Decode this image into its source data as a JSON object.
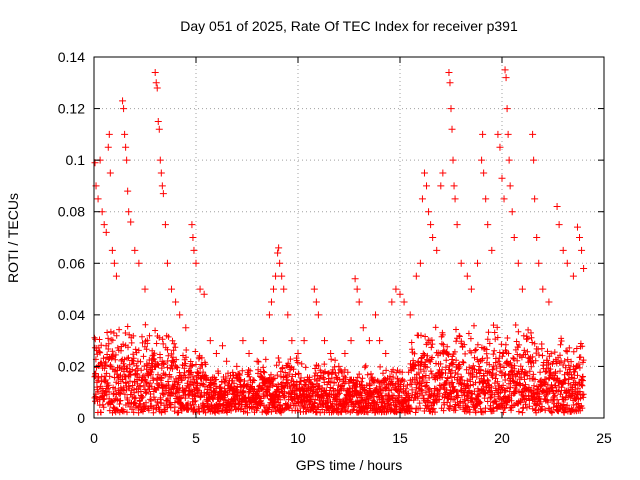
{
  "chart_data": {
    "type": "scatter",
    "title": "Day 051 of 2025, Rate Of TEC Index for receiver p391",
    "xlabel": "GPS time / hours",
    "ylabel": "ROTI / TECUs",
    "xlim": [
      0,
      25
    ],
    "ylim": [
      0,
      0.14
    ],
    "x_ticks": [
      0,
      5,
      10,
      15,
      20,
      25
    ],
    "y_ticks": [
      0,
      0.02,
      0.04,
      0.06,
      0.08,
      0.1,
      0.12,
      0.14
    ],
    "x_tick_labels": [
      "0",
      "5",
      "10",
      "15",
      "20",
      "25"
    ],
    "y_tick_labels": [
      "0",
      "0.02",
      "0.04",
      "0.06",
      "0.08",
      "0.1",
      "0.12",
      "0.14"
    ],
    "grid": true,
    "marker": "plus",
    "series_color": "#ff0000",
    "series": [
      {
        "values_note": "",
        "points": [
          [
            0.05,
            0.099
          ],
          [
            0.1,
            0.09
          ],
          [
            0.2,
            0.085
          ],
          [
            0.3,
            0.1
          ],
          [
            0.4,
            0.08
          ],
          [
            0.5,
            0.075
          ],
          [
            0.6,
            0.072
          ],
          [
            0.7,
            0.105
          ],
          [
            0.75,
            0.11
          ],
          [
            0.8,
            0.095
          ],
          [
            0.9,
            0.065
          ],
          [
            1.0,
            0.06
          ],
          [
            1.1,
            0.055
          ],
          [
            1.4,
            0.123
          ],
          [
            1.45,
            0.12
          ],
          [
            1.5,
            0.11
          ],
          [
            1.55,
            0.105
          ],
          [
            1.6,
            0.1
          ],
          [
            1.65,
            0.088
          ],
          [
            1.7,
            0.08
          ],
          [
            1.8,
            0.076
          ],
          [
            2.0,
            0.065
          ],
          [
            2.2,
            0.06
          ],
          [
            2.5,
            0.05
          ],
          [
            3.0,
            0.134
          ],
          [
            3.05,
            0.13
          ],
          [
            3.1,
            0.128
          ],
          [
            3.15,
            0.115
          ],
          [
            3.2,
            0.112
          ],
          [
            3.25,
            0.1
          ],
          [
            3.3,
            0.095
          ],
          [
            3.35,
            0.09
          ],
          [
            3.4,
            0.087
          ],
          [
            3.5,
            0.075
          ],
          [
            3.6,
            0.06
          ],
          [
            3.8,
            0.05
          ],
          [
            4.0,
            0.045
          ],
          [
            4.2,
            0.04
          ],
          [
            4.5,
            0.035
          ],
          [
            4.8,
            0.075
          ],
          [
            4.85,
            0.07
          ],
          [
            4.9,
            0.065
          ],
          [
            5.0,
            0.06
          ],
          [
            5.2,
            0.05
          ],
          [
            5.4,
            0.048
          ],
          [
            5.7,
            0.03
          ],
          [
            6.0,
            0.025
          ],
          [
            6.3,
            0.028
          ],
          [
            6.5,
            0.022
          ],
          [
            7.0,
            0.02
          ],
          [
            7.3,
            0.03
          ],
          [
            7.6,
            0.025
          ],
          [
            8.0,
            0.022
          ],
          [
            8.3,
            0.03
          ],
          [
            8.6,
            0.04
          ],
          [
            8.7,
            0.045
          ],
          [
            8.8,
            0.05
          ],
          [
            8.9,
            0.055
          ],
          [
            9.0,
            0.064
          ],
          [
            9.05,
            0.066
          ],
          [
            9.1,
            0.06
          ],
          [
            9.2,
            0.055
          ],
          [
            9.3,
            0.05
          ],
          [
            9.5,
            0.04
          ],
          [
            9.7,
            0.03
          ],
          [
            10.0,
            0.025
          ],
          [
            10.3,
            0.03
          ],
          [
            10.8,
            0.05
          ],
          [
            10.9,
            0.045
          ],
          [
            11.0,
            0.04
          ],
          [
            11.3,
            0.03
          ],
          [
            11.6,
            0.025
          ],
          [
            12.0,
            0.02
          ],
          [
            12.3,
            0.025
          ],
          [
            12.6,
            0.03
          ],
          [
            12.8,
            0.054
          ],
          [
            12.9,
            0.05
          ],
          [
            13.0,
            0.045
          ],
          [
            13.2,
            0.035
          ],
          [
            13.5,
            0.03
          ],
          [
            13.8,
            0.04
          ],
          [
            14.0,
            0.03
          ],
          [
            14.3,
            0.025
          ],
          [
            14.6,
            0.045
          ],
          [
            14.8,
            0.05
          ],
          [
            15.0,
            0.048
          ],
          [
            15.2,
            0.045
          ],
          [
            15.5,
            0.04
          ],
          [
            15.8,
            0.055
          ],
          [
            16.0,
            0.06
          ],
          [
            16.1,
            0.085
          ],
          [
            16.2,
            0.095
          ],
          [
            16.3,
            0.09
          ],
          [
            16.4,
            0.08
          ],
          [
            16.5,
            0.075
          ],
          [
            16.6,
            0.07
          ],
          [
            16.8,
            0.065
          ],
          [
            17.0,
            0.09
          ],
          [
            17.1,
            0.095
          ],
          [
            17.4,
            0.134
          ],
          [
            17.45,
            0.13
          ],
          [
            17.5,
            0.12
          ],
          [
            17.55,
            0.112
          ],
          [
            17.6,
            0.1
          ],
          [
            17.65,
            0.09
          ],
          [
            17.7,
            0.085
          ],
          [
            17.8,
            0.075
          ],
          [
            18.0,
            0.06
          ],
          [
            18.3,
            0.055
          ],
          [
            18.5,
            0.05
          ],
          [
            18.8,
            0.06
          ],
          [
            19.0,
            0.1
          ],
          [
            19.05,
            0.11
          ],
          [
            19.1,
            0.095
          ],
          [
            19.2,
            0.085
          ],
          [
            19.3,
            0.075
          ],
          [
            19.5,
            0.065
          ],
          [
            19.8,
            0.11
          ],
          [
            19.9,
            0.105
          ],
          [
            20.0,
            0.093
          ],
          [
            20.1,
            0.085
          ],
          [
            20.15,
            0.135
          ],
          [
            20.2,
            0.132
          ],
          [
            20.25,
            0.12
          ],
          [
            20.3,
            0.11
          ],
          [
            20.35,
            0.1
          ],
          [
            20.4,
            0.09
          ],
          [
            20.5,
            0.08
          ],
          [
            20.6,
            0.07
          ],
          [
            20.8,
            0.06
          ],
          [
            21.0,
            0.05
          ],
          [
            21.5,
            0.11
          ],
          [
            21.55,
            0.1
          ],
          [
            21.6,
            0.085
          ],
          [
            21.7,
            0.07
          ],
          [
            21.8,
            0.06
          ],
          [
            22.0,
            0.05
          ],
          [
            22.3,
            0.045
          ],
          [
            22.7,
            0.082
          ],
          [
            22.8,
            0.075
          ],
          [
            23.0,
            0.065
          ],
          [
            23.2,
            0.06
          ],
          [
            23.5,
            0.055
          ],
          [
            23.7,
            0.074
          ],
          [
            23.8,
            0.07
          ],
          [
            23.9,
            0.065
          ],
          [
            24.0,
            0.058
          ]
        ]
      }
    ]
  }
}
